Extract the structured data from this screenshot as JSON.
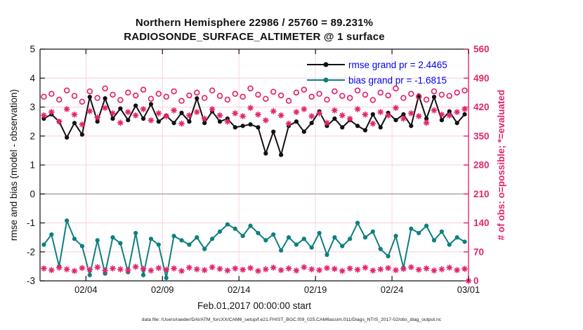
{
  "header": {
    "title_line1": "Northern Hemisphere 22986 / 25760 = 89.231%",
    "title_line2": "RADIOSONDE_SURFACE_ALTIMETER @ 1 surface"
  },
  "axes": {
    "left_label": "rmse and bias (model - observation)",
    "right_label": "# of obs: o=possible; *=evaluated",
    "x_label": "Feb.01,2017 00:00:00 start"
  },
  "legend": {
    "rmse_label": "rmse grand pr = 2.4465",
    "bias_label": "bias grand pr = -1.6815",
    "text_color": "#0000ee"
  },
  "footer": {
    "text": "data file: /Users/raeder/DAI/ATM_forcXX/CAM6_setup/f.e21.FHIST_BGC.f09_025.CAM6assim.011/Diags_NTrS_2017-02/obs_diag_output.nc"
  },
  "colors": {
    "rmse": "#111111",
    "bias": "#0e7f7f",
    "counts": "#e3256e",
    "grid": "#f6d0dc",
    "zero_line": "#a9a9a9",
    "legend_text": "#0000ee"
  },
  "chart_data": {
    "type": "line",
    "title": "Northern Hemisphere 22986 / 25760 = 89.231% | RADIOSONDE_SURFACE_ALTIMETER @ 1 surface",
    "xlabel": "Feb.01,2017 00:00:00 start",
    "ylabel_left": "rmse and bias (model - observation)",
    "ylabel_right": "# of obs: o=possible; *=evaluated",
    "x_start_day": 0.25,
    "x_step_days": 0.5,
    "x_range_days": [
      0,
      28
    ],
    "ylim_left": [
      -3,
      5
    ],
    "ylim_right": [
      0,
      560
    ],
    "left_ticks": [
      5,
      4,
      3,
      2,
      1,
      0,
      -1,
      -2,
      -3
    ],
    "right_ticks": [
      560,
      490,
      420,
      350,
      280,
      210,
      140,
      70,
      0
    ],
    "x_ticks": [
      {
        "t": 3,
        "label": "02/04"
      },
      {
        "t": 8,
        "label": "02/09"
      },
      {
        "t": 13,
        "label": "02/14"
      },
      {
        "t": 18,
        "label": "02/19"
      },
      {
        "t": 23,
        "label": "02/24"
      },
      {
        "t": 28,
        "label": "03/01"
      }
    ],
    "grand_stats": {
      "rmse_grand_prior": 2.4465,
      "bias_grand_prior": -1.6815
    },
    "series": [
      {
        "name": "rmse",
        "axis": "left",
        "marker": "filled-circle",
        "line": true,
        "values": [
          2.6,
          2.75,
          2.5,
          1.95,
          2.45,
          2.05,
          3.35,
          2.5,
          3.3,
          2.6,
          2.95,
          2.55,
          3.05,
          2.6,
          3.1,
          2.5,
          2.7,
          2.45,
          2.8,
          2.5,
          3.3,
          2.45,
          2.85,
          2.5,
          2.6,
          2.3,
          2.35,
          2.4,
          2.3,
          1.4,
          2.15,
          1.35,
          2.35,
          2.5,
          2.15,
          2.45,
          2.85,
          2.35,
          2.6,
          2.3,
          2.55,
          2.35,
          2.2,
          2.75,
          2.3,
          2.8,
          2.55,
          2.75,
          2.35,
          3.4,
          2.6,
          3.35,
          2.55,
          2.85,
          2.45,
          2.75
        ]
      },
      {
        "name": "bias",
        "axis": "left",
        "marker": "filled-circle",
        "line": true,
        "values": [
          -1.75,
          -1.4,
          -2.5,
          -0.92,
          -1.55,
          -1.8,
          -2.8,
          -1.6,
          -2.75,
          -1.5,
          -1.7,
          -2.7,
          -1.35,
          -2.8,
          -1.55,
          -1.75,
          -2.9,
          -1.45,
          -1.6,
          -1.75,
          -1.5,
          -1.9,
          -1.55,
          -1.3,
          -1.05,
          -1.2,
          -1.45,
          -1.1,
          -1.35,
          -1.6,
          -1.4,
          -1.95,
          -1.5,
          -1.75,
          -1.55,
          -1.85,
          -1.35,
          -2.1,
          -1.5,
          -1.8,
          -1.55,
          -1.0,
          -1.5,
          -1.3,
          -1.9,
          -2.15,
          -1.45,
          -2.55,
          -1.2,
          -1.35,
          -1.1,
          -1.6,
          -1.3,
          -1.75,
          -1.5,
          -1.65
        ]
      },
      {
        "name": "possible_obs",
        "axis": "right",
        "marker": "open-circle",
        "line": false,
        "values": [
          445,
          452,
          438,
          460,
          447,
          433,
          458,
          442,
          465,
          450,
          437,
          455,
          448,
          462,
          440,
          452,
          445,
          458,
          435,
          448,
          455,
          442,
          460,
          447,
          438,
          452,
          445,
          465,
          450,
          440,
          457,
          448,
          435,
          455,
          462,
          445,
          452,
          438,
          458,
          447,
          442,
          460,
          450,
          437,
          455,
          448,
          465,
          442,
          452,
          445,
          438,
          458,
          450,
          447,
          455,
          460
        ]
      },
      {
        "name": "evaluated_obs",
        "axis": "right",
        "marker": "asterisk",
        "line": false,
        "values": [
          400,
          408,
          385,
          415,
          402,
          378,
          410,
          395,
          418,
          405,
          382,
          408,
          400,
          415,
          388,
          405,
          398,
          412,
          380,
          400,
          408,
          392,
          415,
          400,
          385,
          405,
          398,
          418,
          402,
          388,
          410,
          400,
          380,
          408,
          415,
          398,
          405,
          382,
          412,
          400,
          392,
          415,
          402,
          380,
          408,
          400,
          418,
          392,
          405,
          398,
          382,
          412,
          402,
          400,
          408,
          415
        ]
      },
      {
        "name": "low_count_asterisks",
        "axis": "right",
        "marker": "asterisk",
        "line": false,
        "values": [
          30,
          26,
          32,
          28,
          24,
          31,
          27,
          33,
          25,
          30,
          28,
          26,
          34,
          29,
          25,
          31,
          27,
          30,
          24,
          32,
          28,
          26,
          33,
          29,
          25,
          30,
          27,
          31,
          24,
          28,
          32,
          26,
          30,
          25,
          33,
          28,
          26,
          31,
          29,
          24,
          30,
          27,
          32,
          25,
          28,
          31,
          26,
          29,
          33,
          27,
          30,
          25,
          28,
          32,
          26,
          29
        ],
        "extra_point": {
          "t": 28,
          "value": 0
        }
      }
    ]
  }
}
